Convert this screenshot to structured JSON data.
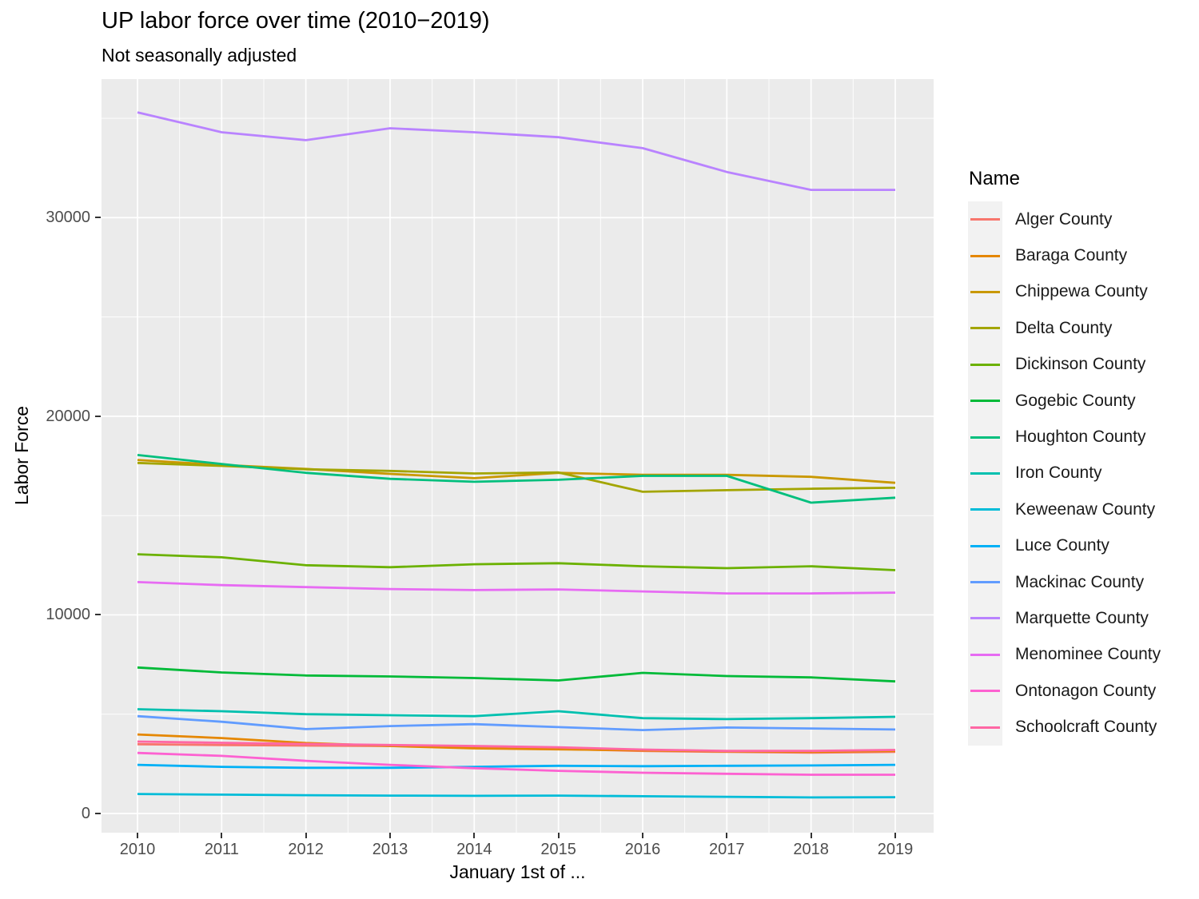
{
  "chart_data": {
    "type": "line",
    "title": "UP labor force over time (2010−2019)",
    "subtitle": "Not seasonally adjusted",
    "xlabel": "January 1st of ...",
    "ylabel": "Labor Force",
    "legend_title": "Name",
    "legend_position": "right",
    "grid": true,
    "x": [
      2010,
      2011,
      2012,
      2013,
      2014,
      2015,
      2016,
      2017,
      2018,
      2019
    ],
    "x_tick_labels": [
      "2010",
      "2011",
      "2012",
      "2013",
      "2014",
      "2015",
      "2016",
      "2017",
      "2018",
      "2019"
    ],
    "y_tick_labels": [
      "0",
      "10000",
      "20000",
      "30000"
    ],
    "y_major_gridlines": [
      0,
      10000,
      20000,
      30000
    ],
    "y_minor_gridlines": [
      5000,
      15000,
      25000,
      35000
    ],
    "ylim": [
      -1000,
      37000
    ],
    "colors": {
      "panel_bg": "#EBEBEB",
      "gridline": "#FFFFFF",
      "legend_key_bg": "#F2F2F2",
      "tick_label": "#4D4D4D",
      "tick_mark": "#333333"
    },
    "series": [
      {
        "name": "Alger County",
        "color": "#F8766D",
        "values": [
          3490,
          3450,
          3420,
          3400,
          3320,
          3250,
          3150,
          3100,
          3060,
          3100
        ]
      },
      {
        "name": "Baraga County",
        "color": "#E58700",
        "values": [
          3980,
          3800,
          3550,
          3400,
          3280,
          3230,
          3180,
          3130,
          3100,
          3150
        ]
      },
      {
        "name": "Chippewa County",
        "color": "#C99800",
        "values": [
          17800,
          17550,
          17350,
          17100,
          16880,
          17150,
          17050,
          17050,
          16950,
          16650
        ]
      },
      {
        "name": "Delta County",
        "color": "#A3A500",
        "values": [
          17650,
          17500,
          17330,
          17250,
          17120,
          17170,
          16200,
          16280,
          16350,
          16400
        ]
      },
      {
        "name": "Dickinson County",
        "color": "#6BB100",
        "values": [
          13050,
          12900,
          12500,
          12400,
          12550,
          12600,
          12450,
          12350,
          12450,
          12250
        ]
      },
      {
        "name": "Gogebic County",
        "color": "#00BA38",
        "values": [
          7350,
          7100,
          6950,
          6900,
          6820,
          6700,
          7080,
          6920,
          6850,
          6650
        ]
      },
      {
        "name": "Houghton County",
        "color": "#00BF7D",
        "values": [
          18050,
          17600,
          17150,
          16850,
          16700,
          16800,
          17000,
          17000,
          15650,
          15900
        ]
      },
      {
        "name": "Iron County",
        "color": "#00C0AF",
        "values": [
          5250,
          5150,
          5000,
          4950,
          4900,
          5150,
          4800,
          4750,
          4800,
          4870
        ]
      },
      {
        "name": "Keweenaw County",
        "color": "#00BCD8",
        "values": [
          980,
          950,
          920,
          900,
          890,
          900,
          870,
          840,
          810,
          820
        ]
      },
      {
        "name": "Luce County",
        "color": "#00B0F6",
        "values": [
          2450,
          2350,
          2300,
          2300,
          2350,
          2400,
          2380,
          2400,
          2420,
          2450
        ]
      },
      {
        "name": "Mackinac County",
        "color": "#619CFF",
        "values": [
          4900,
          4620,
          4250,
          4400,
          4500,
          4350,
          4200,
          4330,
          4280,
          4230
        ]
      },
      {
        "name": "Marquette County",
        "color": "#B983FF",
        "values": [
          35300,
          34300,
          33900,
          34500,
          34300,
          34050,
          33500,
          32300,
          31400,
          31400
        ]
      },
      {
        "name": "Menominee County",
        "color": "#E76BF3",
        "values": [
          11650,
          11500,
          11400,
          11300,
          11250,
          11280,
          11180,
          11080,
          11080,
          11120
        ]
      },
      {
        "name": "Ontonagon County",
        "color": "#FD61D1",
        "values": [
          3050,
          2900,
          2650,
          2450,
          2280,
          2150,
          2050,
          2000,
          1950,
          1950
        ]
      },
      {
        "name": "Schoolcraft County",
        "color": "#FF67A4",
        "values": [
          3620,
          3560,
          3500,
          3450,
          3400,
          3330,
          3220,
          3150,
          3150,
          3200
        ]
      }
    ]
  }
}
